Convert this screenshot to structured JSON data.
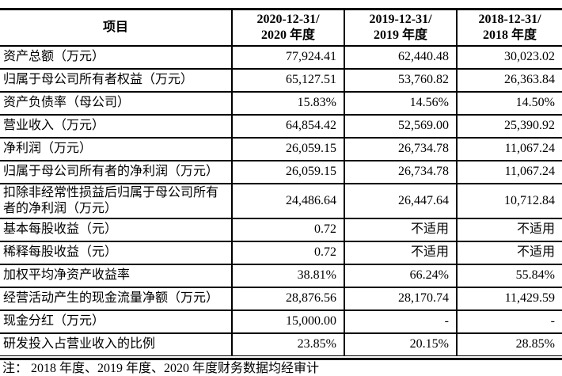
{
  "page": {
    "background": "#ffffff",
    "text_color": "#000000",
    "rule_color": "#000000"
  },
  "table": {
    "header": {
      "item": "项目",
      "periods": [
        {
          "line1": "2020-12-31/",
          "line2": "2020 年度"
        },
        {
          "line1": "2019-12-31/",
          "line2": "2019 年度"
        },
        {
          "line1": "2018-12-31/",
          "line2": "2018 年度"
        }
      ]
    },
    "rows": [
      {
        "label": "资产总额（万元）",
        "y2020": "77,924.41",
        "y2019": "62,440.48",
        "y2018": "30,023.02"
      },
      {
        "label": "归属于母公司所有者权益（万元）",
        "y2020": "65,127.51",
        "y2019": "53,760.82",
        "y2018": "26,363.84"
      },
      {
        "label": "资产负债率（母公司）",
        "y2020": "15.83%",
        "y2019": "14.56%",
        "y2018": "14.50%"
      },
      {
        "label": "营业收入（万元）",
        "y2020": "64,854.42",
        "y2019": "52,569.00",
        "y2018": "25,390.92"
      },
      {
        "label": "净利润（万元）",
        "y2020": "26,059.15",
        "y2019": "26,734.78",
        "y2018": "11,067.24"
      },
      {
        "label": "归属于母公司所有者的净利润（万元）",
        "y2020": "26,059.15",
        "y2019": "26,734.78",
        "y2018": "11,067.24"
      },
      {
        "label": "扣除非经常性损益后归属于母公司所有者的净利润（万元）",
        "y2020": "24,486.64",
        "y2019": "26,447.64",
        "y2018": "10,712.84"
      },
      {
        "label": "基本每股收益（元）",
        "y2020": "0.72",
        "y2019": "不适用",
        "y2018": "不适用"
      },
      {
        "label": "稀释每股收益（元）",
        "y2020": "0.72",
        "y2019": "不适用",
        "y2018": "不适用"
      },
      {
        "label": "加权平均净资产收益率",
        "y2020": "38.81%",
        "y2019": "66.24%",
        "y2018": "55.84%"
      },
      {
        "label": "经营活动产生的现金流量净额（万元）",
        "y2020": "28,876.56",
        "y2019": "28,170.74",
        "y2018": "11,429.59"
      },
      {
        "label": "现金分红（万元）",
        "y2020": "15,000.00",
        "y2019": "-",
        "y2018": "-"
      },
      {
        "label": "研发投入占营业收入的比例",
        "y2020": "23.85%",
        "y2019": "20.15%",
        "y2018": "28.85%"
      }
    ]
  },
  "footnote": {
    "text": "注：  2018 年度、2019 年度、2020 年度财务数据均经审计"
  }
}
